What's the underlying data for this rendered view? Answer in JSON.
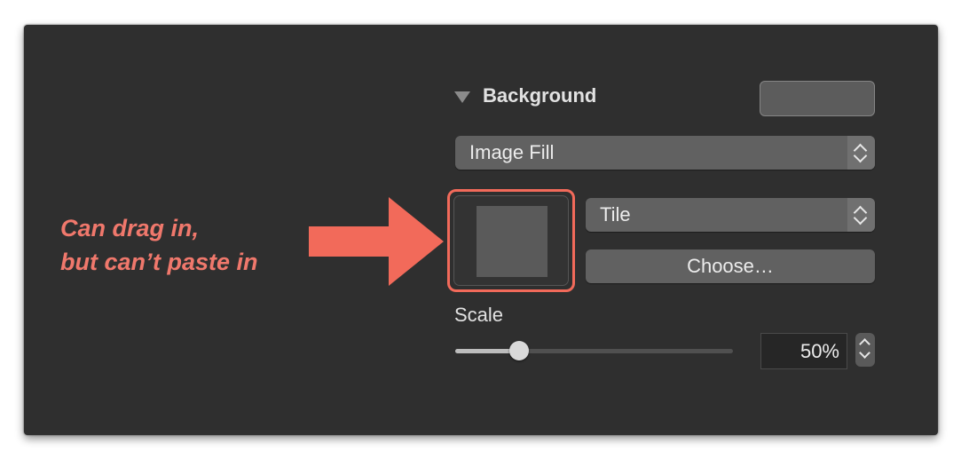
{
  "background_section": {
    "title": "Background",
    "fill_type": "Image Fill",
    "tile_mode": "Tile",
    "choose_label": "Choose…",
    "scale_label": "Scale",
    "scale_value": "50%",
    "scale_fraction": 0.23
  },
  "annotation": {
    "line1": "Can drag in,",
    "line2": "but can’t paste in"
  },
  "colors": {
    "panel_bg": "#2f2f2f",
    "accent_highlight": "#f26a5a",
    "annotation_text": "#f0786c"
  },
  "icons": {
    "disclosure": "disclosure-triangle-down-icon",
    "popup_arrows": "up-down-chevron-icon",
    "arrow": "right-arrow-icon"
  }
}
